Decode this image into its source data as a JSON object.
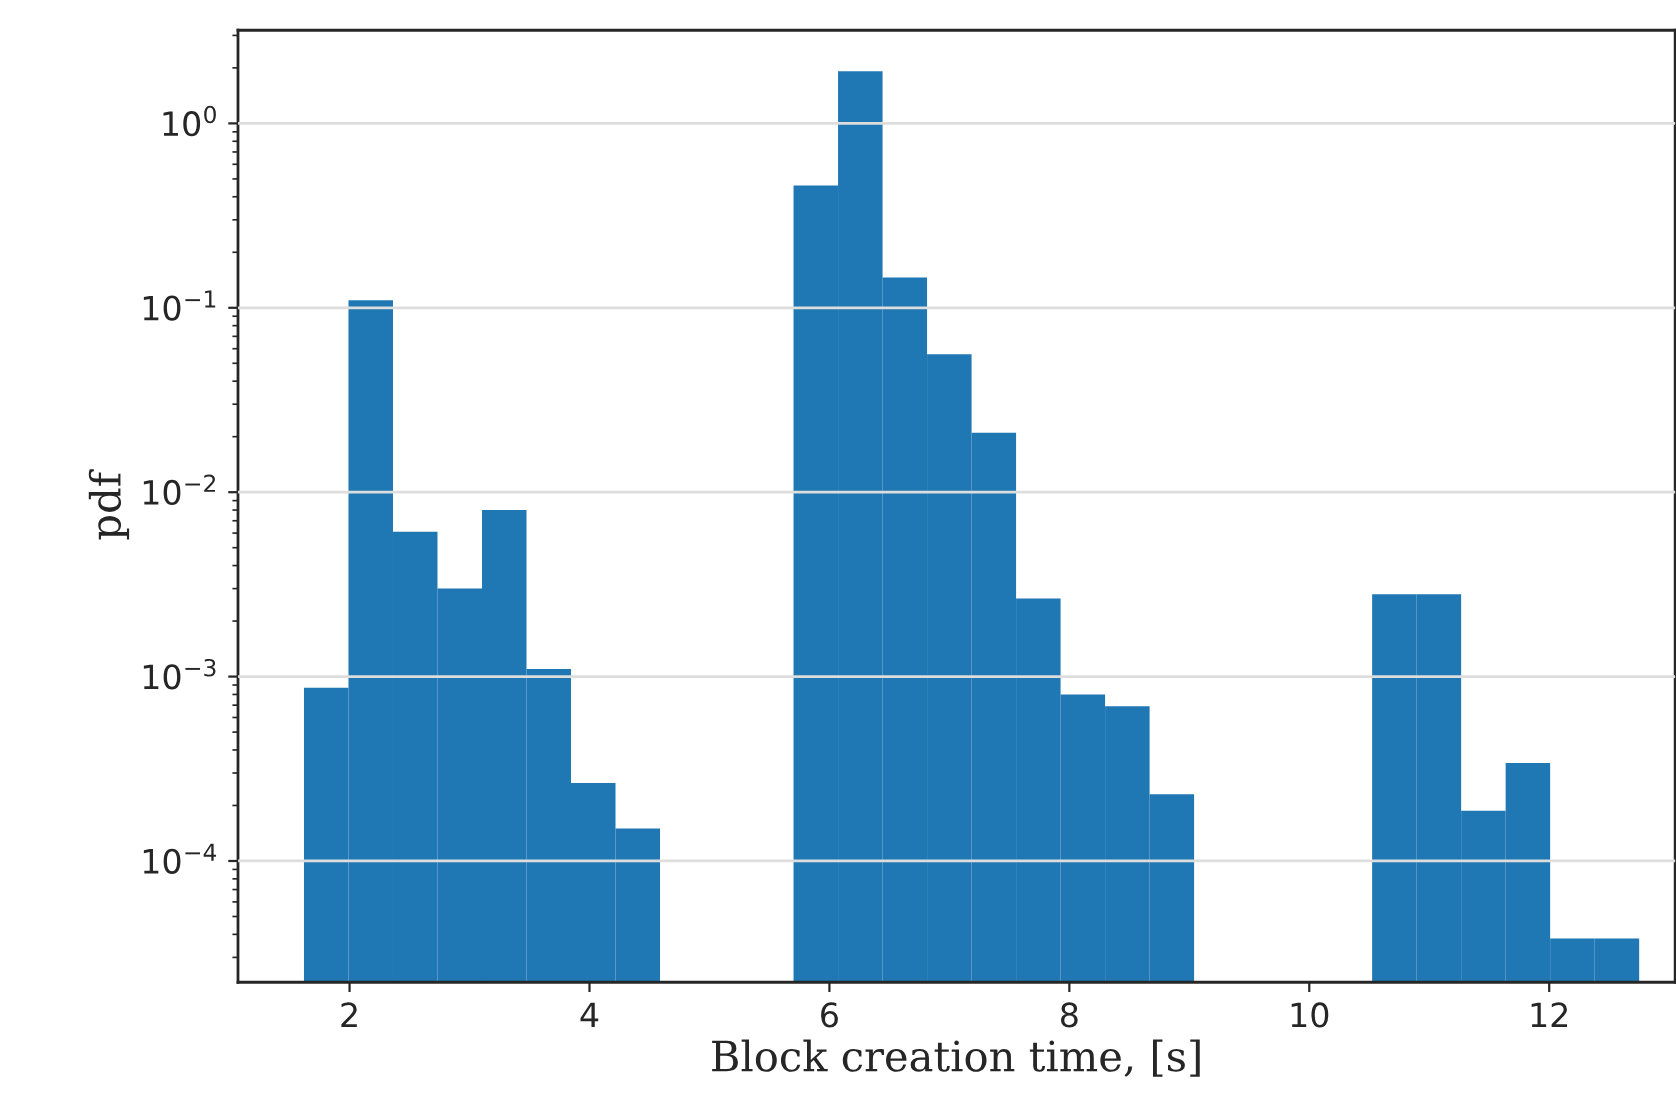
{
  "chart_data": {
    "type": "histogram",
    "xlabel": "Block creation time, [s]",
    "ylabel": "pdf",
    "bins": [
      1.62,
      1.991,
      2.362,
      2.733,
      3.104,
      3.475,
      3.846,
      4.217,
      4.588,
      4.959,
      5.33,
      5.701,
      6.072,
      6.443,
      6.814,
      7.185,
      7.556,
      7.927,
      8.298,
      8.669,
      9.04,
      9.411,
      9.782,
      10.153,
      10.524,
      10.895,
      11.266,
      11.637,
      12.008,
      12.379,
      12.75
    ],
    "values": [
      0.00087,
      0.11,
      0.0061,
      0.003,
      0.008,
      0.0011,
      0.000265,
      0.00015,
      null,
      null,
      null,
      0.46,
      1.92,
      0.146,
      0.056,
      0.021,
      0.00265,
      0.0008,
      0.00069,
      0.00023,
      null,
      null,
      null,
      null,
      0.0028,
      0.0028,
      0.000187,
      0.00034,
      3.8e-05,
      3.8e-05
    ],
    "color": "#1f77b4",
    "log": "y",
    "grid": "y",
    "xlim": [
      1.07,
      13.05
    ],
    "xticks": [
      2,
      4,
      6,
      8,
      10,
      12
    ],
    "ylim": [
      2.2e-05,
      3.2
    ],
    "yticks": [
      {
        "value": 0.0001,
        "label": "10$^{−4}$"
      },
      {
        "value": 0.001,
        "label": "10$^{−3}$"
      },
      {
        "value": 0.01,
        "label": "10$^{−2}$"
      },
      {
        "value": 0.1,
        "label": "10$^{−1}$"
      },
      {
        "value": 1,
        "label": "10$^{0}$"
      }
    ]
  }
}
